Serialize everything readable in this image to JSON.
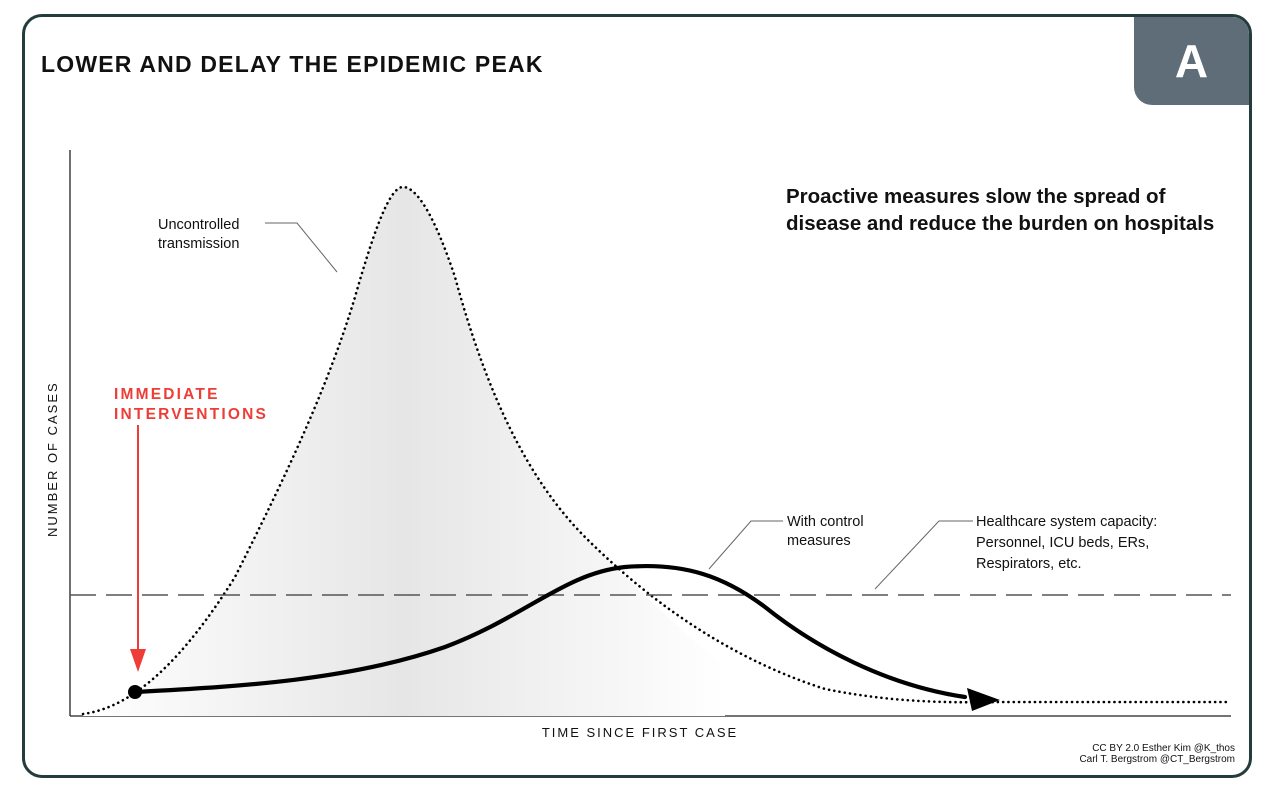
{
  "figure": {
    "panel_letter": "A",
    "title": "LOWER AND DELAY THE EPIDEMIC PEAK",
    "headline": "Proactive measures slow the spread of disease and reduce the burden on hospitals",
    "ylabel": "NUMBER OF CASES",
    "xlabel": "TIME SINCE FIRST CASE",
    "credit_line1": "CC BY 2.0  Esther Kim  @K_thos",
    "credit_line2": "Carl T. Bergstrom  @CT_Bergstrom"
  },
  "annotations": {
    "uncontrolled_line1": "Uncontrolled",
    "uncontrolled_line2": "transmission",
    "intervention_line1": "IMMEDIATE",
    "intervention_line2": "INTERVENTIONS",
    "control_line1": "With control",
    "control_line2": "measures",
    "capacity_line1": "Healthcare system capacity:",
    "capacity_line2": "Personnel, ICU beds, ERs,",
    "capacity_line3": "Respirators, etc."
  },
  "colors": {
    "border": "#243c3c",
    "tab": "#5f6d79",
    "intervention": "#ee3d36",
    "curve": "#000000",
    "fill": "#e8e8e8",
    "capacity": "#555555"
  }
}
